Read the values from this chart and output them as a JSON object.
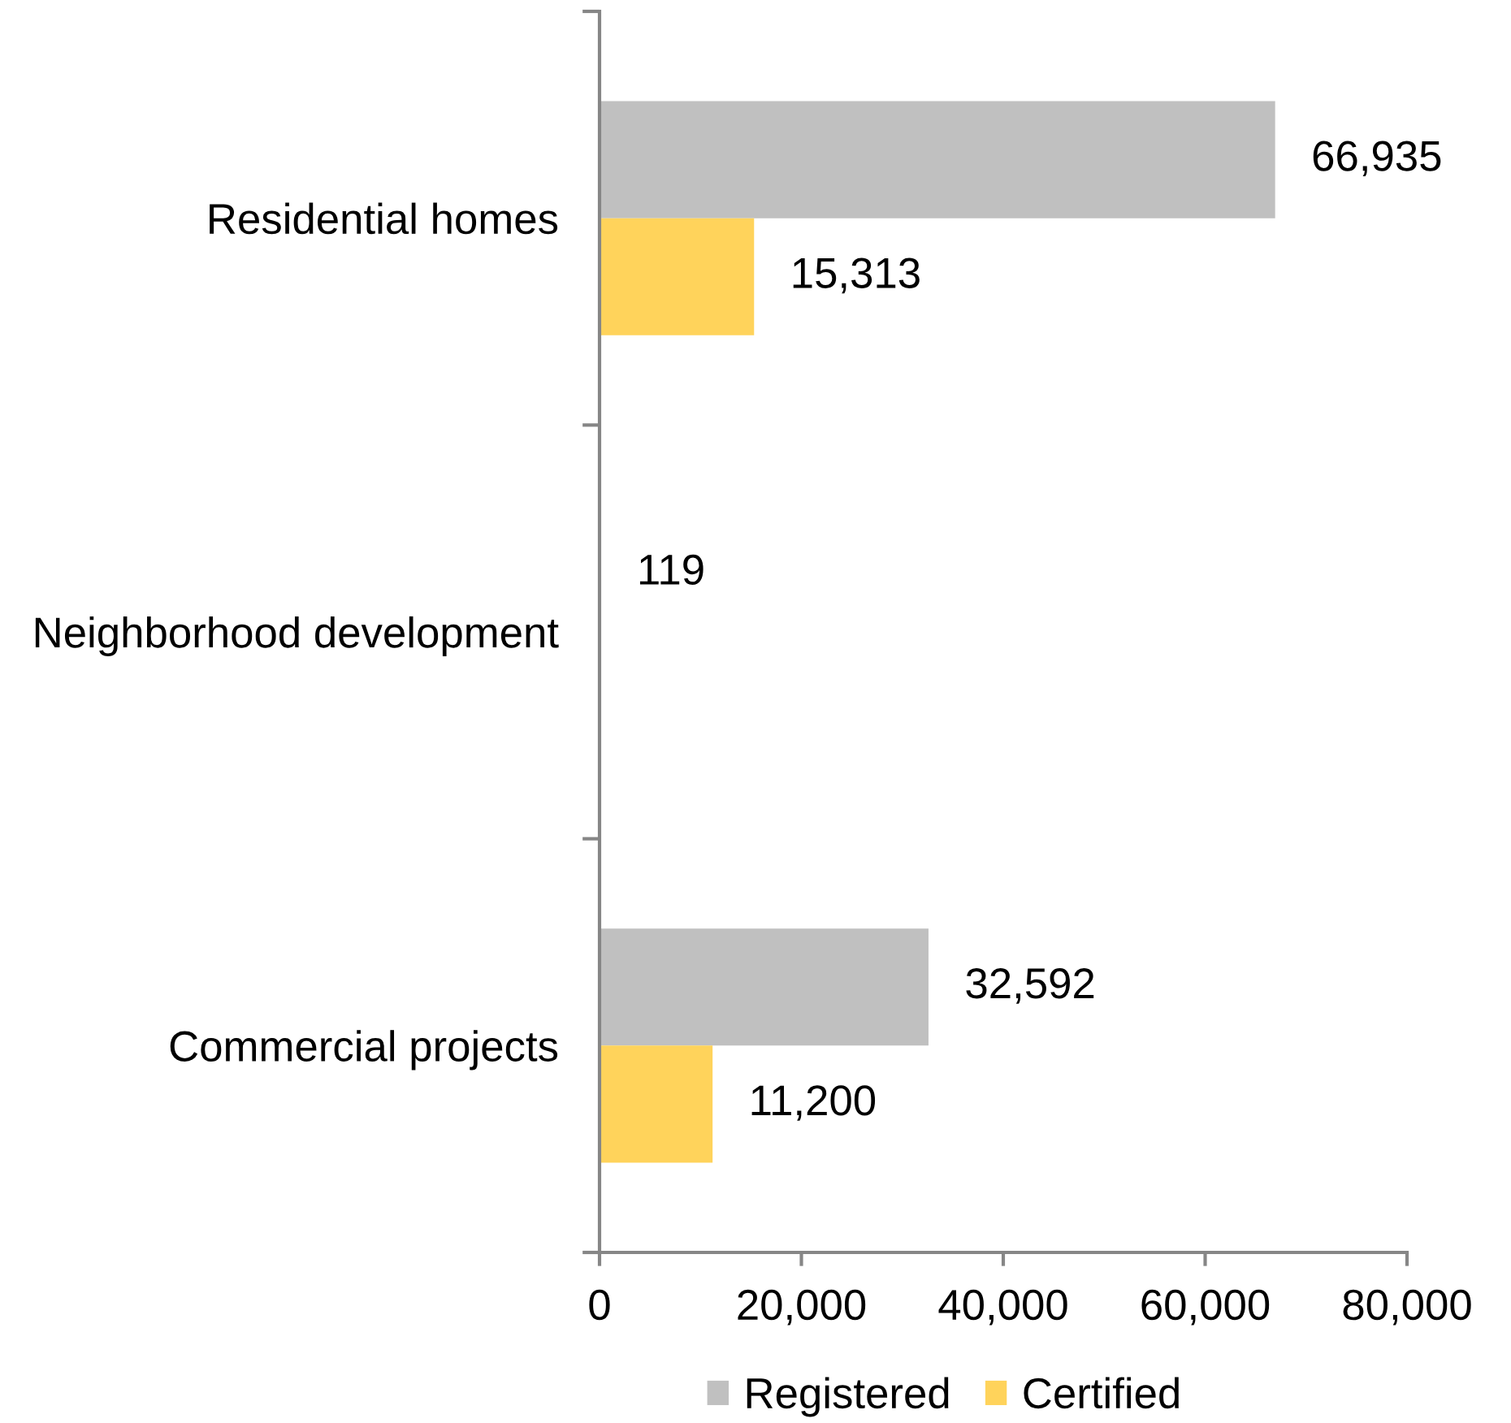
{
  "chart_data": {
    "type": "bar",
    "orientation": "horizontal",
    "categories": [
      "Residential homes",
      "Neighborhood development",
      "Commercial projects"
    ],
    "series": [
      {
        "name": "Registered",
        "color": "#c0c0c0",
        "values": [
          66935,
          119,
          32592
        ],
        "value_labels": [
          "66,935",
          "119",
          "32,592"
        ]
      },
      {
        "name": "Certified",
        "color": "#ffd35b",
        "values": [
          15313,
          null,
          11200
        ],
        "value_labels": [
          "15,313",
          null,
          "11,200"
        ]
      }
    ],
    "xlim": [
      0,
      80000
    ],
    "xticks": [
      0,
      {
        "value": 20000,
        "label": "20,000"
      },
      {
        "value": 40000,
        "label": "40,000"
      },
      {
        "value": 60000,
        "label": "60,000"
      },
      {
        "value": 80000,
        "label": "80,000"
      }
    ],
    "legend": "bottom"
  }
}
